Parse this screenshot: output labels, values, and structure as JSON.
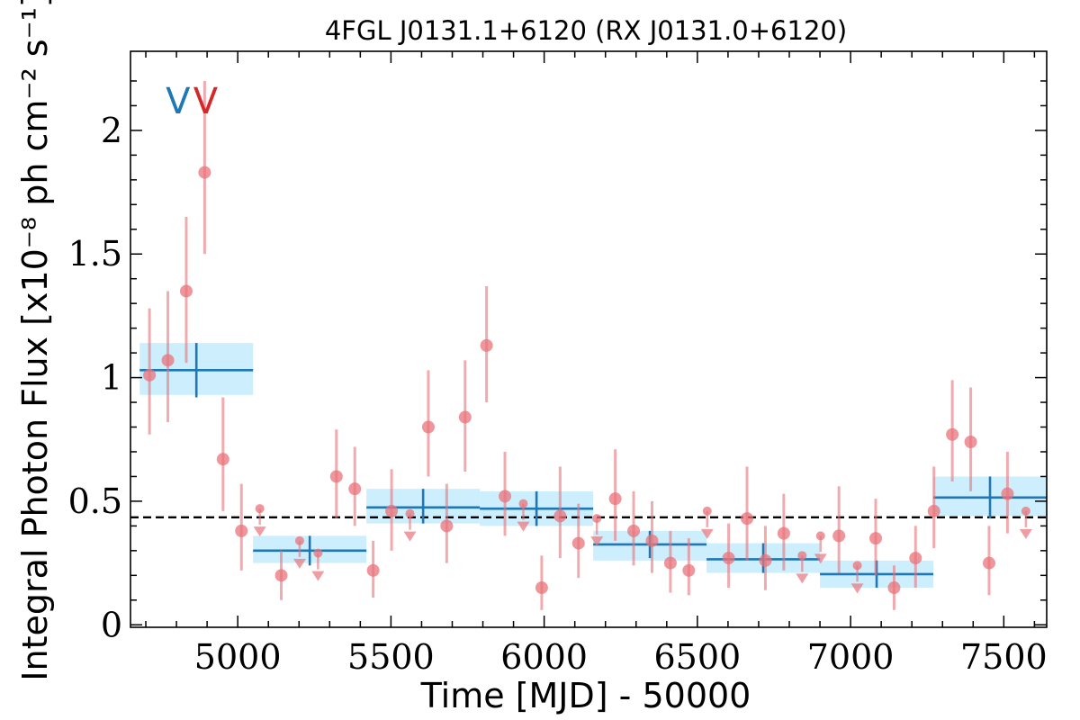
{
  "chart_data": {
    "type": "scatter",
    "title": "4FGL J0131.1+6120 (RX J0131.0+6120)",
    "xlabel": "Time [MJD] - 50000",
    "ylabel": "Integral Photon Flux [x10⁻⁸ ph cm⁻² s⁻¹]",
    "xlim": [
      4650,
      7640
    ],
    "ylim": [
      -0.01,
      2.32
    ],
    "xticks": [
      5000,
      5500,
      6000,
      6500,
      7000,
      7500
    ],
    "xtick_labels": [
      "5000",
      "5500",
      "6000",
      "6500",
      "7000",
      "7500"
    ],
    "yticks": [
      0,
      0.5,
      1,
      1.5,
      2
    ],
    "ytick_labels": [
      "0",
      "0.5",
      "1",
      "1.5",
      "2"
    ],
    "grid": false,
    "colors": {
      "short_bin": "#e8737a",
      "long_bin_line": "#1f77b4",
      "long_bin_band": "#cdeefc",
      "average_line": "#000000",
      "marker_blue": "#1f77b4",
      "marker_red": "#d62728"
    },
    "average_flux": 0.435,
    "markers": [
      {
        "x": 4805,
        "label": "V",
        "color": "#1f77b4"
      },
      {
        "x": 4895,
        "label": "V",
        "color": "#d62728"
      }
    ],
    "series": [
      {
        "kind": "detections",
        "points": [
          {
            "x": 4712,
            "y": 1.01,
            "ylo": 0.77,
            "yhi": 1.28
          },
          {
            "x": 4772,
            "y": 1.07,
            "ylo": 0.82,
            "yhi": 1.35
          },
          {
            "x": 4832,
            "y": 1.35,
            "ylo": 1.06,
            "yhi": 1.65
          },
          {
            "x": 4892,
            "y": 1.83,
            "ylo": 1.5,
            "yhi": 2.2
          },
          {
            "x": 4952,
            "y": 0.67,
            "ylo": 0.46,
            "yhi": 0.92
          },
          {
            "x": 5012,
            "y": 0.38,
            "ylo": 0.22,
            "yhi": 0.57
          },
          {
            "x": 5142,
            "y": 0.2,
            "ylo": 0.1,
            "yhi": 0.3
          },
          {
            "x": 5322,
            "y": 0.6,
            "ylo": 0.43,
            "yhi": 0.79
          },
          {
            "x": 5382,
            "y": 0.55,
            "ylo": 0.4,
            "yhi": 0.72
          },
          {
            "x": 5442,
            "y": 0.22,
            "ylo": 0.11,
            "yhi": 0.34
          },
          {
            "x": 5502,
            "y": 0.46,
            "ylo": 0.3,
            "yhi": 0.63
          },
          {
            "x": 5622,
            "y": 0.8,
            "ylo": 0.6,
            "yhi": 1.03
          },
          {
            "x": 5682,
            "y": 0.4,
            "ylo": 0.25,
            "yhi": 0.57
          },
          {
            "x": 5742,
            "y": 0.84,
            "ylo": 0.62,
            "yhi": 1.07
          },
          {
            "x": 5812,
            "y": 1.13,
            "ylo": 0.9,
            "yhi": 1.37
          },
          {
            "x": 5872,
            "y": 0.52,
            "ylo": 0.36,
            "yhi": 0.7
          },
          {
            "x": 5992,
            "y": 0.15,
            "ylo": 0.06,
            "yhi": 0.28
          },
          {
            "x": 6052,
            "y": 0.44,
            "ylo": 0.27,
            "yhi": 0.64
          },
          {
            "x": 6112,
            "y": 0.33,
            "ylo": 0.19,
            "yhi": 0.49
          },
          {
            "x": 6232,
            "y": 0.51,
            "ylo": 0.34,
            "yhi": 0.71
          },
          {
            "x": 6292,
            "y": 0.38,
            "ylo": 0.24,
            "yhi": 0.54
          },
          {
            "x": 6352,
            "y": 0.34,
            "ylo": 0.21,
            "yhi": 0.5
          },
          {
            "x": 6412,
            "y": 0.25,
            "ylo": 0.13,
            "yhi": 0.38
          },
          {
            "x": 6472,
            "y": 0.22,
            "ylo": 0.12,
            "yhi": 0.35
          },
          {
            "x": 6602,
            "y": 0.27,
            "ylo": 0.15,
            "yhi": 0.41
          },
          {
            "x": 6662,
            "y": 0.43,
            "ylo": 0.26,
            "yhi": 0.64
          },
          {
            "x": 6722,
            "y": 0.26,
            "ylo": 0.14,
            "yhi": 0.4
          },
          {
            "x": 6782,
            "y": 0.37,
            "ylo": 0.22,
            "yhi": 0.53
          },
          {
            "x": 6962,
            "y": 0.36,
            "ylo": 0.21,
            "yhi": 0.56
          },
          {
            "x": 7082,
            "y": 0.35,
            "ylo": 0.2,
            "yhi": 0.51
          },
          {
            "x": 7142,
            "y": 0.15,
            "ylo": 0.06,
            "yhi": 0.24
          },
          {
            "x": 7212,
            "y": 0.27,
            "ylo": 0.15,
            "yhi": 0.4
          },
          {
            "x": 7272,
            "y": 0.46,
            "ylo": 0.31,
            "yhi": 0.64
          },
          {
            "x": 7332,
            "y": 0.77,
            "ylo": 0.58,
            "yhi": 0.99
          },
          {
            "x": 7392,
            "y": 0.74,
            "ylo": 0.54,
            "yhi": 0.96
          },
          {
            "x": 7452,
            "y": 0.25,
            "ylo": 0.12,
            "yhi": 0.4
          },
          {
            "x": 7512,
            "y": 0.53,
            "ylo": 0.37,
            "yhi": 0.7
          }
        ]
      },
      {
        "kind": "upper_limits",
        "points": [
          {
            "x": 5072,
            "y": 0.47
          },
          {
            "x": 5202,
            "y": 0.34
          },
          {
            "x": 5262,
            "y": 0.29
          },
          {
            "x": 5562,
            "y": 0.45
          },
          {
            "x": 5932,
            "y": 0.49
          },
          {
            "x": 6172,
            "y": 0.43
          },
          {
            "x": 6532,
            "y": 0.46
          },
          {
            "x": 6842,
            "y": 0.28
          },
          {
            "x": 6902,
            "y": 0.36
          },
          {
            "x": 7022,
            "y": 0.24
          },
          {
            "x": 7572,
            "y": 0.46
          }
        ]
      },
      {
        "kind": "long_bins",
        "bins": [
          {
            "x0": 4680,
            "x1": 5050,
            "y": 1.03,
            "ylo": 0.93,
            "yhi": 1.14,
            "xc": 4865,
            "ybar": [
              0.92,
              1.14
            ]
          },
          {
            "x0": 5050,
            "x1": 5420,
            "y": 0.3,
            "ylo": 0.25,
            "yhi": 0.36,
            "xc": 5235,
            "ybar": [
              0.24,
              0.36
            ]
          },
          {
            "x0": 5420,
            "x1": 5790,
            "y": 0.475,
            "ylo": 0.41,
            "yhi": 0.55,
            "xc": 5605,
            "ybar": [
              0.41,
              0.55
            ]
          },
          {
            "x0": 5790,
            "x1": 6160,
            "y": 0.47,
            "ylo": 0.4,
            "yhi": 0.54,
            "xc": 5975,
            "ybar": [
              0.4,
              0.54
            ]
          },
          {
            "x0": 6160,
            "x1": 6530,
            "y": 0.325,
            "ylo": 0.26,
            "yhi": 0.38,
            "xc": 6345,
            "ybar": [
              0.27,
              0.38
            ]
          },
          {
            "x0": 6530,
            "x1": 6900,
            "y": 0.265,
            "ylo": 0.21,
            "yhi": 0.33,
            "xc": 6715,
            "ybar": [
              0.21,
              0.33
            ]
          },
          {
            "x0": 6900,
            "x1": 7270,
            "y": 0.205,
            "ylo": 0.15,
            "yhi": 0.26,
            "xc": 7085,
            "ybar": [
              0.15,
              0.26
            ]
          },
          {
            "x0": 7270,
            "x1": 7640,
            "y": 0.515,
            "ylo": 0.44,
            "yhi": 0.6,
            "xc": 7455,
            "ybar": [
              0.43,
              0.6
            ]
          }
        ]
      }
    ]
  }
}
